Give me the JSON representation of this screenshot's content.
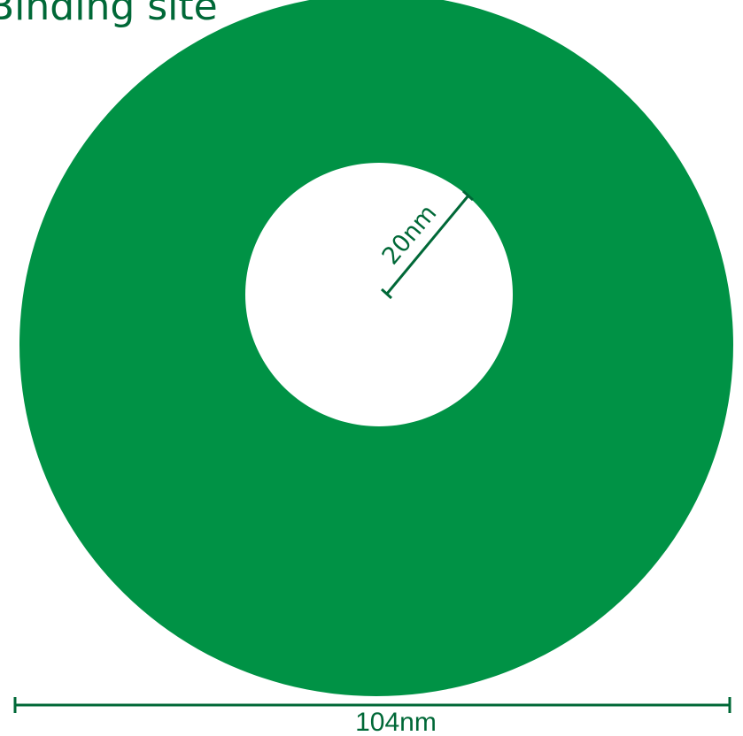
{
  "title": "Binding site",
  "inner_label": "20nm",
  "outer_label": "104nm",
  "colors": {
    "ring": "#009245",
    "text": "#006837",
    "line": "#006837",
    "background": "#ffffff"
  }
}
